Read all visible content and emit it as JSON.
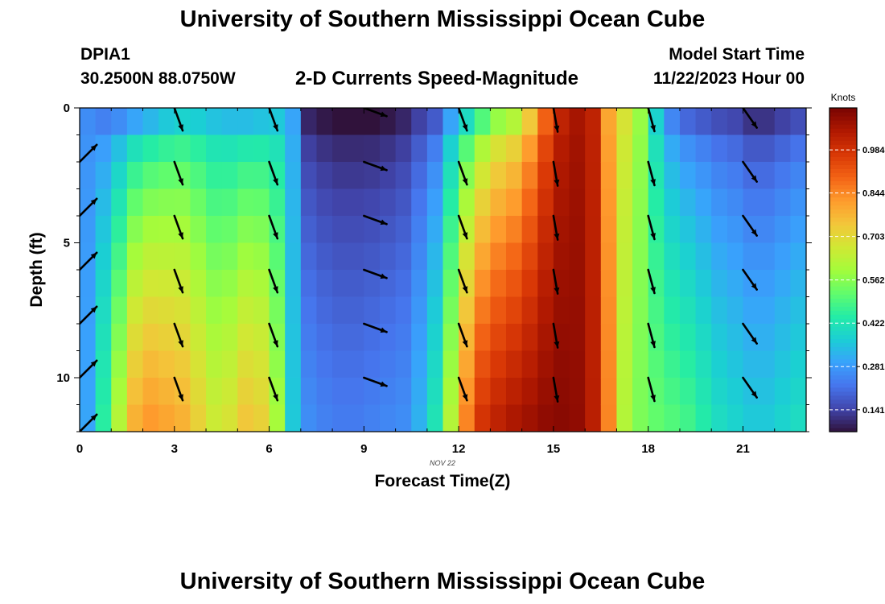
{
  "header": {
    "title": "University of Southern Mississippi Ocean Cube",
    "station_id": "DPIA1",
    "station_coords": "30.2500N  88.0750W",
    "chart_title": "2-D Currents Speed-Magnitude",
    "start_label": "Model Start Time",
    "start_value": "11/22/2023 Hour 00"
  },
  "footer": {
    "title": "University of Southern Mississippi Ocean Cube"
  },
  "chart_data": {
    "type": "heatmap",
    "title": "2-D Currents Speed-Magnitude",
    "xlabel": "Forecast Time(Z)",
    "ylabel": "Depth (ft)",
    "date_label": "NOV 22",
    "xlim": [
      0,
      23
    ],
    "ylim": [
      0,
      12
    ],
    "y_inverted": true,
    "x_ticks": [
      0,
      3,
      6,
      9,
      12,
      15,
      18,
      21
    ],
    "y_ticks": [
      0,
      5,
      10
    ],
    "colorbar": {
      "title": "Knots",
      "ticks": [
        0.141,
        0.281,
        0.422,
        0.562,
        0.703,
        0.844,
        0.984
      ],
      "range": [
        0.07,
        1.12
      ],
      "colors": [
        "#30123b",
        "#4145ab",
        "#4675ed",
        "#39a2fc",
        "#1bcfd4",
        "#24eca6",
        "#61fc6c",
        "#a4fc3b",
        "#d1e834",
        "#f3c63a",
        "#fe9b2d",
        "#f36315",
        "#d93806",
        "#b11901",
        "#7a0402"
      ]
    },
    "hours": [
      0,
      0.5,
      1,
      1.5,
      2,
      2.5,
      3,
      3.5,
      4,
      4.5,
      5,
      5.5,
      6,
      6.5,
      7,
      7.5,
      8,
      8.5,
      9,
      9.5,
      10,
      10.5,
      11,
      11.5,
      12,
      12.5,
      13,
      13.5,
      14,
      14.5,
      15,
      15.5,
      16,
      16.5,
      17,
      17.5,
      18,
      18.5,
      19,
      19.5,
      20,
      20.5,
      21,
      21.5,
      22,
      22.5
    ],
    "depths": [
      0,
      1,
      2,
      3,
      4,
      5,
      6,
      7,
      8,
      9,
      10,
      11
    ],
    "surface_speed": [
      0.26,
      0.24,
      0.26,
      0.3,
      0.33,
      0.36,
      0.38,
      0.37,
      0.35,
      0.34,
      0.34,
      0.35,
      0.36,
      0.3,
      0.1,
      0.08,
      0.07,
      0.07,
      0.07,
      0.08,
      0.1,
      0.14,
      0.18,
      0.3,
      0.4,
      0.5,
      0.58,
      0.62,
      0.74,
      0.9,
      1.02,
      1.06,
      1.02,
      0.8,
      0.68,
      0.58,
      0.38,
      0.25,
      0.2,
      0.18,
      0.16,
      0.15,
      0.12,
      0.12,
      0.14,
      0.16
    ],
    "bottom_speed": [
      0.3,
      0.45,
      0.62,
      0.78,
      0.82,
      0.8,
      0.78,
      0.72,
      0.66,
      0.68,
      0.74,
      0.72,
      0.6,
      0.36,
      0.26,
      0.24,
      0.23,
      0.23,
      0.24,
      0.25,
      0.26,
      0.32,
      0.42,
      0.62,
      0.85,
      0.98,
      1.02,
      1.05,
      1.07,
      1.09,
      1.1,
      1.09,
      1.03,
      0.85,
      0.62,
      0.55,
      0.52,
      0.5,
      0.48,
      0.44,
      0.4,
      0.38,
      0.36,
      0.36,
      0.38,
      0.4
    ],
    "vectors": [
      {
        "hour": 0,
        "angle_deg": 45,
        "depths": [
          2,
          4,
          6,
          8,
          10,
          12
        ]
      },
      {
        "hour": 3,
        "angle_deg": 160,
        "depths": [
          0,
          2,
          4,
          6,
          8,
          10
        ]
      },
      {
        "hour": 6,
        "angle_deg": 160,
        "depths": [
          0,
          2,
          4,
          6,
          8,
          10
        ]
      },
      {
        "hour": 9,
        "angle_deg": 110,
        "depths": [
          0,
          2,
          4,
          6,
          8,
          10
        ]
      },
      {
        "hour": 12,
        "angle_deg": 160,
        "depths": [
          0,
          2,
          4,
          6,
          8,
          10
        ]
      },
      {
        "hour": 15,
        "angle_deg": 170,
        "depths": [
          0,
          2,
          4,
          6,
          8,
          10
        ]
      },
      {
        "hour": 18,
        "angle_deg": 165,
        "depths": [
          0,
          2,
          4,
          6,
          8,
          10
        ]
      },
      {
        "hour": 21,
        "angle_deg": 145,
        "depths": [
          0,
          2,
          4,
          6,
          8,
          10
        ]
      }
    ]
  }
}
